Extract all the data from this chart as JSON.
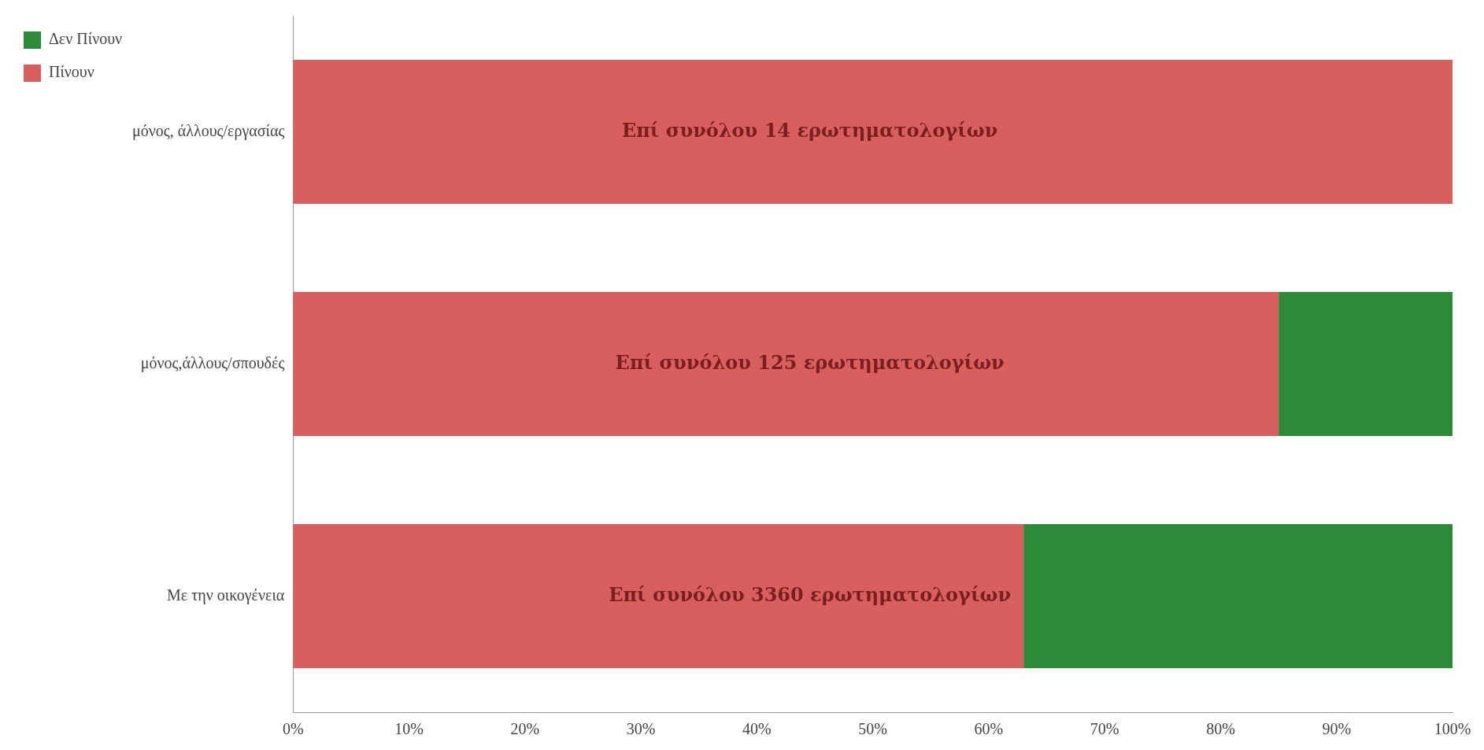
{
  "chart_data": {
    "type": "bar",
    "orientation": "horizontal",
    "stacked": true,
    "categories": [
      "μόνος, άλλους/εργασίας",
      "μόνος,άλλους/σπουδές",
      "Με την οικογένεια"
    ],
    "series": [
      {
        "name": "Πίνουν",
        "color": "#d95f5f",
        "values": [
          100,
          85,
          63
        ]
      },
      {
        "name": "Δεν Πίνουν",
        "color": "#2e8a3a",
        "values": [
          0,
          15,
          37
        ]
      }
    ],
    "xlim": [
      0,
      100
    ],
    "xticks": [
      {
        "value": 0,
        "label": "0%"
      },
      {
        "value": 10,
        "label": "10%"
      },
      {
        "value": 20,
        "label": "20%"
      },
      {
        "value": 30,
        "label": "30%"
      },
      {
        "value": 40,
        "label": "40%"
      },
      {
        "value": 50,
        "label": "50%"
      },
      {
        "value": 60,
        "label": "60%"
      },
      {
        "value": 70,
        "label": "70%"
      },
      {
        "value": 80,
        "label": "80%"
      },
      {
        "value": 90,
        "label": "90%"
      },
      {
        "value": 100,
        "label": "100%"
      }
    ],
    "grid": false,
    "legend": "top left",
    "annotations": [
      "Επί συνόλου 14 ερωτηματολογίων",
      "Επί συνόλου 125 ερωτηματολογίων",
      "Επί συνόλου 3360 ερωτηματολογίων"
    ]
  }
}
